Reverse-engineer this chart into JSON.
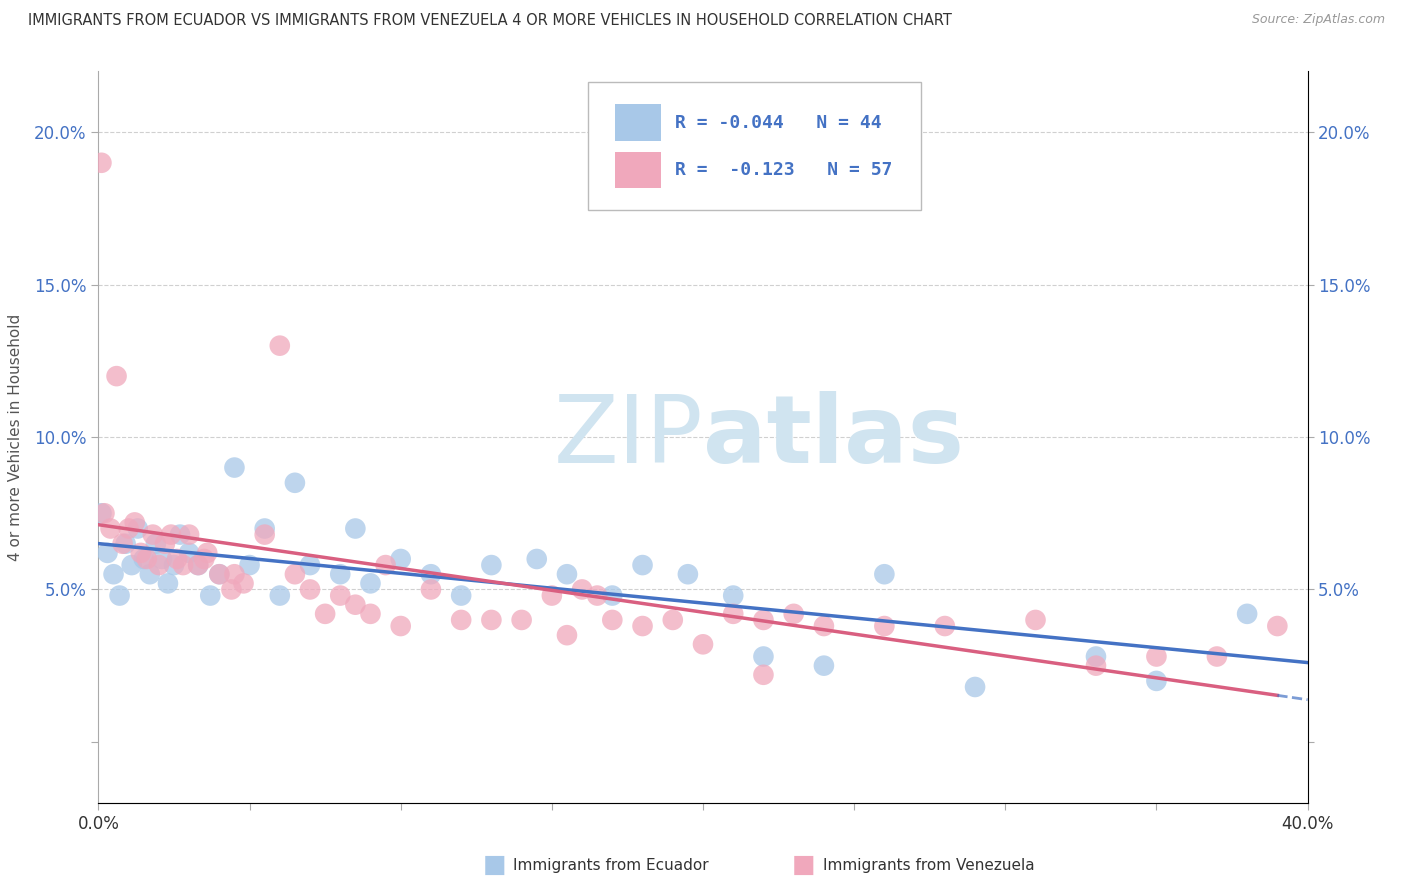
{
  "title": "IMMIGRANTS FROM ECUADOR VS IMMIGRANTS FROM VENEZUELA 4 OR MORE VEHICLES IN HOUSEHOLD CORRELATION CHART",
  "source": "Source: ZipAtlas.com",
  "ylabel": "4 or more Vehicles in Household",
  "yticks": [
    0.0,
    0.05,
    0.1,
    0.15,
    0.2
  ],
  "ytick_labels": [
    "",
    "5.0%",
    "10.0%",
    "15.0%",
    "20.0%"
  ],
  "xticks": [
    0.0,
    0.05,
    0.1,
    0.15,
    0.2,
    0.25,
    0.3,
    0.35,
    0.4
  ],
  "xtick_labels": [
    "0.0%",
    "",
    "",
    "",
    "",
    "",
    "",
    "",
    "40.0%"
  ],
  "xlim": [
    0.0,
    0.4
  ],
  "ylim": [
    -0.02,
    0.22
  ],
  "ecuador_R": -0.044,
  "ecuador_N": 44,
  "venezuela_R": -0.123,
  "venezuela_N": 57,
  "ecuador_color": "#a8c8e8",
  "venezuela_color": "#f0a8bc",
  "ecuador_line_color": "#4472c4",
  "venezuela_line_color": "#d95f80",
  "watermark_color": "#d0e4f0",
  "legend_box_color": "#cccccc",
  "ecuador_x": [
    0.001,
    0.003,
    0.005,
    0.007,
    0.009,
    0.011,
    0.013,
    0.015,
    0.017,
    0.019,
    0.021,
    0.023,
    0.025,
    0.027,
    0.03,
    0.033,
    0.037,
    0.04,
    0.045,
    0.05,
    0.055,
    0.06,
    0.065,
    0.07,
    0.08,
    0.085,
    0.09,
    0.1,
    0.11,
    0.12,
    0.13,
    0.145,
    0.155,
    0.17,
    0.18,
    0.195,
    0.21,
    0.22,
    0.24,
    0.26,
    0.29,
    0.33,
    0.35,
    0.38
  ],
  "ecuador_y": [
    0.075,
    0.062,
    0.055,
    0.048,
    0.065,
    0.058,
    0.07,
    0.06,
    0.055,
    0.065,
    0.06,
    0.052,
    0.058,
    0.068,
    0.062,
    0.058,
    0.048,
    0.055,
    0.09,
    0.058,
    0.07,
    0.048,
    0.085,
    0.058,
    0.055,
    0.07,
    0.052,
    0.06,
    0.055,
    0.048,
    0.058,
    0.06,
    0.055,
    0.048,
    0.058,
    0.055,
    0.048,
    0.028,
    0.025,
    0.055,
    0.018,
    0.028,
    0.02,
    0.042
  ],
  "venezuela_x": [
    0.001,
    0.002,
    0.004,
    0.006,
    0.008,
    0.01,
    0.012,
    0.014,
    0.016,
    0.018,
    0.02,
    0.022,
    0.024,
    0.026,
    0.028,
    0.03,
    0.033,
    0.036,
    0.04,
    0.044,
    0.048,
    0.055,
    0.06,
    0.065,
    0.07,
    0.075,
    0.08,
    0.085,
    0.09,
    0.095,
    0.1,
    0.11,
    0.12,
    0.13,
    0.14,
    0.15,
    0.155,
    0.16,
    0.165,
    0.17,
    0.18,
    0.19,
    0.2,
    0.21,
    0.22,
    0.23,
    0.24,
    0.26,
    0.28,
    0.31,
    0.33,
    0.35,
    0.37,
    0.39,
    0.22,
    0.035,
    0.045
  ],
  "venezuela_y": [
    0.19,
    0.075,
    0.07,
    0.12,
    0.065,
    0.07,
    0.072,
    0.062,
    0.06,
    0.068,
    0.058,
    0.065,
    0.068,
    0.06,
    0.058,
    0.068,
    0.058,
    0.062,
    0.055,
    0.05,
    0.052,
    0.068,
    0.13,
    0.055,
    0.05,
    0.042,
    0.048,
    0.045,
    0.042,
    0.058,
    0.038,
    0.05,
    0.04,
    0.04,
    0.04,
    0.048,
    0.035,
    0.05,
    0.048,
    0.04,
    0.038,
    0.04,
    0.032,
    0.042,
    0.04,
    0.042,
    0.038,
    0.038,
    0.038,
    0.04,
    0.025,
    0.028,
    0.028,
    0.038,
    0.022,
    0.06,
    0.055
  ]
}
